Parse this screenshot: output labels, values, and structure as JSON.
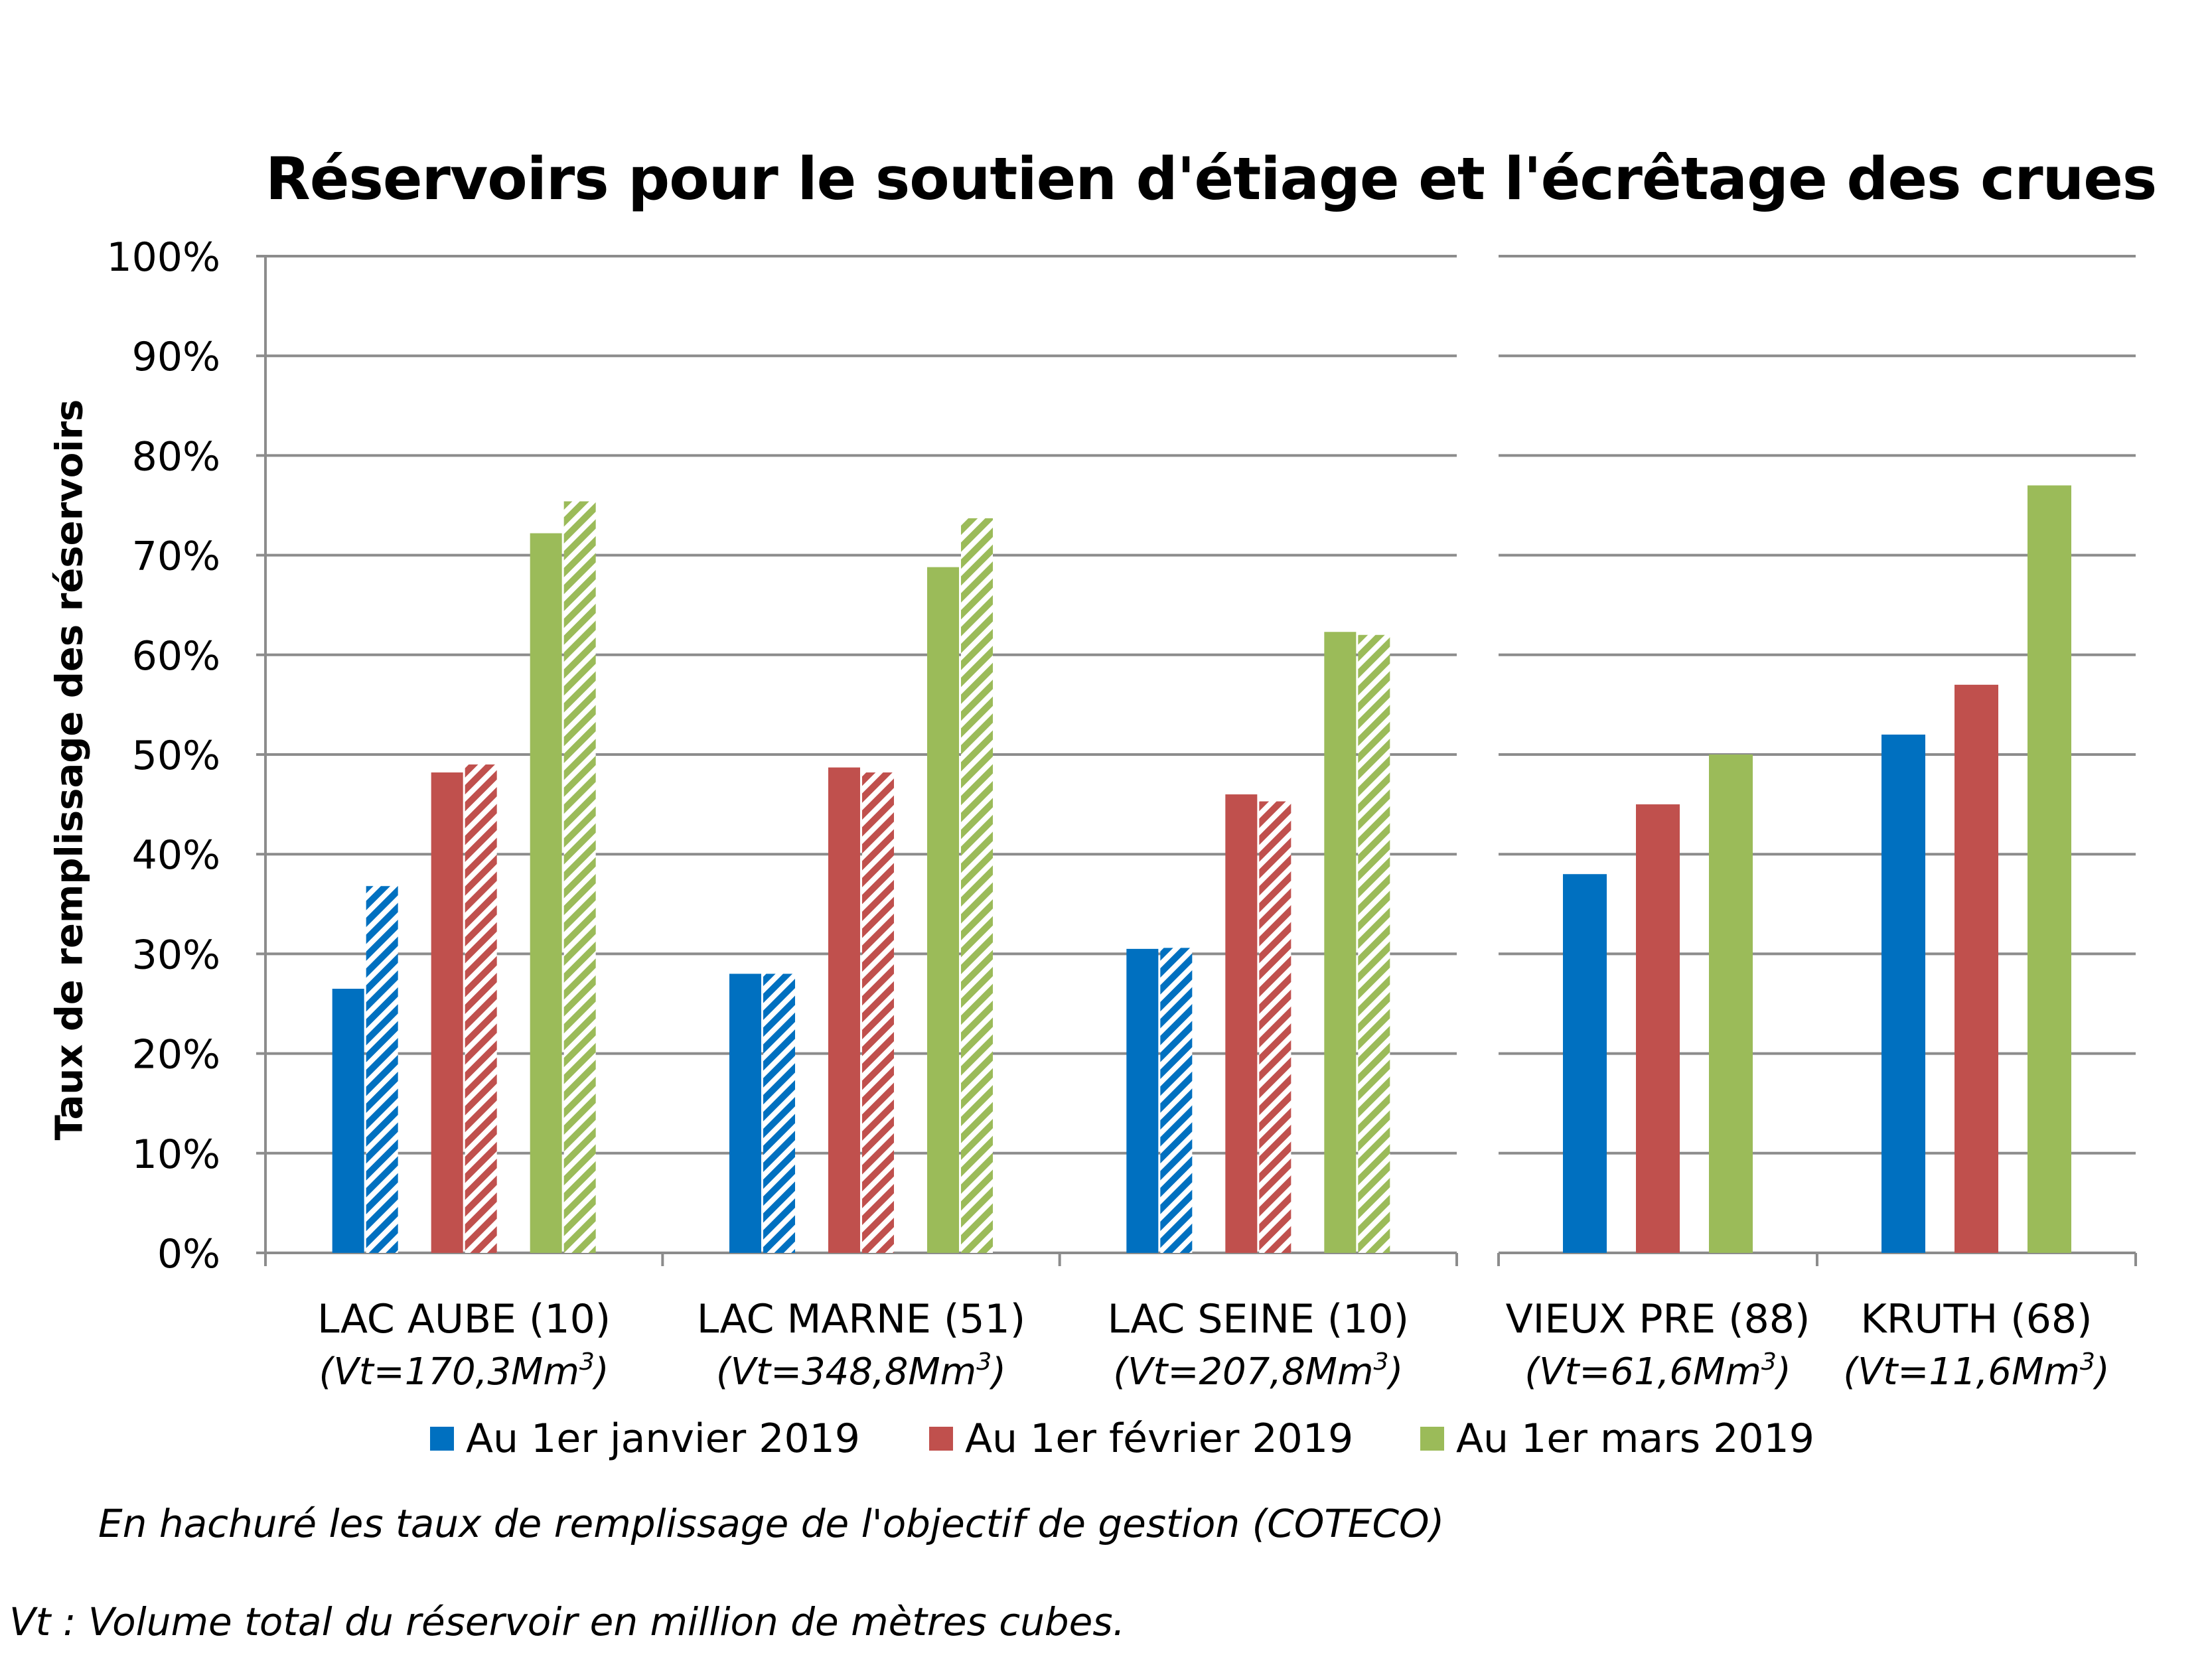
{
  "chart_data": {
    "type": "bar",
    "title": "Réservoirs pour le soutien d'étiage et l'écrêtage des crues",
    "ylabel": "Taux de remplissage des réservoirs",
    "ylim": [
      0,
      100
    ],
    "yticks": [
      "0%",
      "10%",
      "20%",
      "30%",
      "40%",
      "50%",
      "60%",
      "70%",
      "80%",
      "90%",
      "100%"
    ],
    "grid": true,
    "legend_position": "bottom",
    "categories": [
      {
        "name": "LAC AUBE (10)",
        "volume_prefix": "(Vt=170,3Mm",
        "volume_sup": "3",
        "volume_suffix": ")",
        "panel": "left"
      },
      {
        "name": "LAC MARNE (51)",
        "volume_prefix": "(Vt=348,8Mm",
        "volume_sup": "3",
        "volume_suffix": ")",
        "panel": "left"
      },
      {
        "name": "LAC SEINE (10)",
        "volume_prefix": "(Vt=207,8Mm",
        "volume_sup": "3",
        "volume_suffix": ")",
        "panel": "left"
      },
      {
        "name": "VIEUX PRE (88)",
        "volume_prefix": "(Vt=61,6Mm",
        "volume_sup": "3",
        "volume_suffix": ")",
        "panel": "right"
      },
      {
        "name": "KRUTH (68)",
        "volume_prefix": "(Vt=11,6Mm",
        "volume_sup": "3",
        "volume_suffix": ")",
        "panel": "right"
      }
    ],
    "series": [
      {
        "name": "Au 1er janvier 2019",
        "color": "#0070C0",
        "values": [
          26.5,
          28,
          30.5,
          38,
          52
        ]
      },
      {
        "name": "Au 1er février 2019",
        "color": "#C0504D",
        "values": [
          48.2,
          48.7,
          46,
          45,
          57
        ]
      },
      {
        "name": "Au 1er mars 2019",
        "color": "#9BBB59",
        "values": [
          72.2,
          68.8,
          62.3,
          50,
          77
        ]
      }
    ],
    "objective_series": [
      {
        "pattern": "hatched",
        "color": "#0070C0",
        "values": [
          36.8,
          28,
          30.6
        ]
      },
      {
        "pattern": "hatched",
        "color": "#C0504D",
        "values": [
          49,
          48.2,
          45.3
        ]
      },
      {
        "pattern": "hatched",
        "color": "#9BBB59",
        "values": [
          75.4,
          73.7,
          62
        ]
      }
    ]
  },
  "notes": {
    "hatch": "En hachuré les taux de remplissage de l'objectif de gestion (COTECO)",
    "volume": "Vt : Volume total du réservoir en million de mètres cubes."
  }
}
